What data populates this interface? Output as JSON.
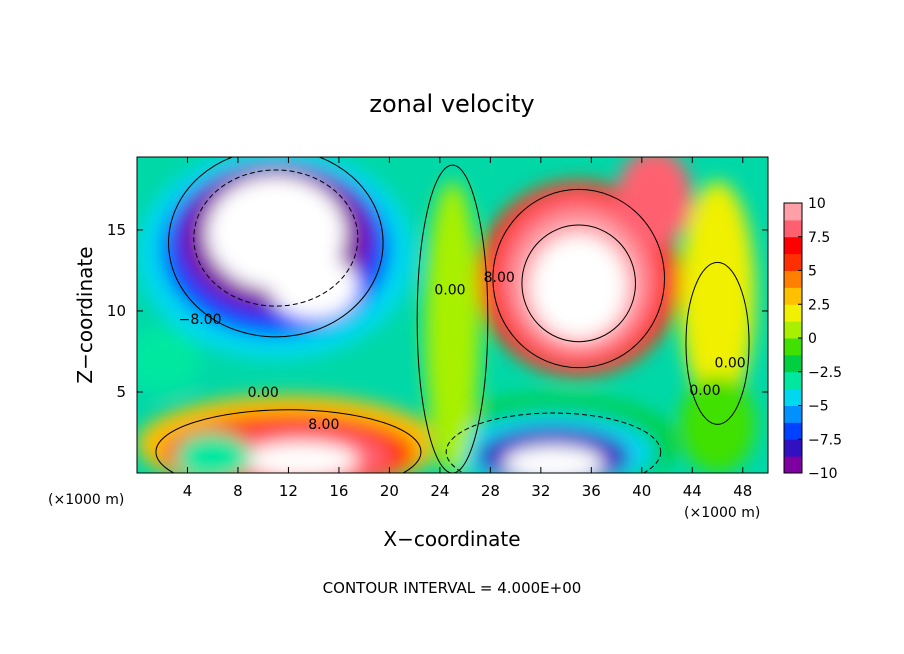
{
  "chart_data": {
    "type": "heatmap",
    "title": "zonal velocity",
    "xlabel": "X−coordinate",
    "ylabel": "Z−coordinate",
    "x_units_label": "(×1000 m)",
    "x_units_label_right": "(×1000 m)",
    "footer": "CONTOUR INTERVAL = 4.000E+00",
    "xlim": [
      0,
      50
    ],
    "ylim": [
      0,
      19.5
    ],
    "x_ticks": [
      4,
      8,
      12,
      16,
      20,
      24,
      28,
      32,
      36,
      40,
      44,
      48
    ],
    "x_tick_labels": [
      "4",
      "8",
      "12",
      "16",
      "20",
      "24",
      "28",
      "32",
      "36",
      "40",
      "44",
      "48"
    ],
    "y_ticks": [
      5,
      10,
      15
    ],
    "y_tick_labels": [
      "5",
      "10",
      "15"
    ],
    "colorbar": {
      "min": -10,
      "max": 10,
      "ticks": [
        10,
        7.5,
        5,
        2.5,
        0,
        -2.5,
        -5,
        -7.5,
        -10
      ],
      "tick_labels": [
        "10",
        "7.5",
        "5",
        "2.5",
        "0",
        "−2.5",
        "−5",
        "−7.5",
        "−10"
      ],
      "colors": [
        "#7f00a0",
        "#3010c0",
        "#0040ff",
        "#0090ff",
        "#00d8f0",
        "#00e8a0",
        "#00d040",
        "#40e000",
        "#a8f000",
        "#f0f000",
        "#ffc000",
        "#ff8000",
        "#ff3000",
        "#ff0000",
        "#ff6070",
        "#ffa0a8"
      ]
    },
    "contour_labels": [
      {
        "text": "−8.00",
        "x": 5,
        "y": 9.2
      },
      {
        "text": "0.00",
        "x": 10,
        "y": 4.7
      },
      {
        "text": "8.00",
        "x": 14.8,
        "y": 2.7
      },
      {
        "text": "0.00",
        "x": 24.8,
        "y": 11.0
      },
      {
        "text": "8.00",
        "x": 28.7,
        "y": 11.8
      },
      {
        "text": "0.00",
        "x": 45.0,
        "y": 4.8
      },
      {
        "text": "0.00",
        "x": 47.0,
        "y": 6.5
      }
    ],
    "regions": [
      {
        "name": "upper-left negative jet",
        "value": -12,
        "center": [
          11,
          14
        ]
      },
      {
        "name": "upper-right positive jet",
        "value": 12,
        "center": [
          34,
          11
        ]
      },
      {
        "name": "lower-left positive jet",
        "value": 12,
        "center": [
          12,
          1
        ]
      },
      {
        "name": "lower-right negative jet",
        "value": -12,
        "center": [
          33,
          1
        ]
      },
      {
        "name": "central neutral band",
        "value": 0,
        "center": [
          24,
          10
        ]
      }
    ]
  }
}
